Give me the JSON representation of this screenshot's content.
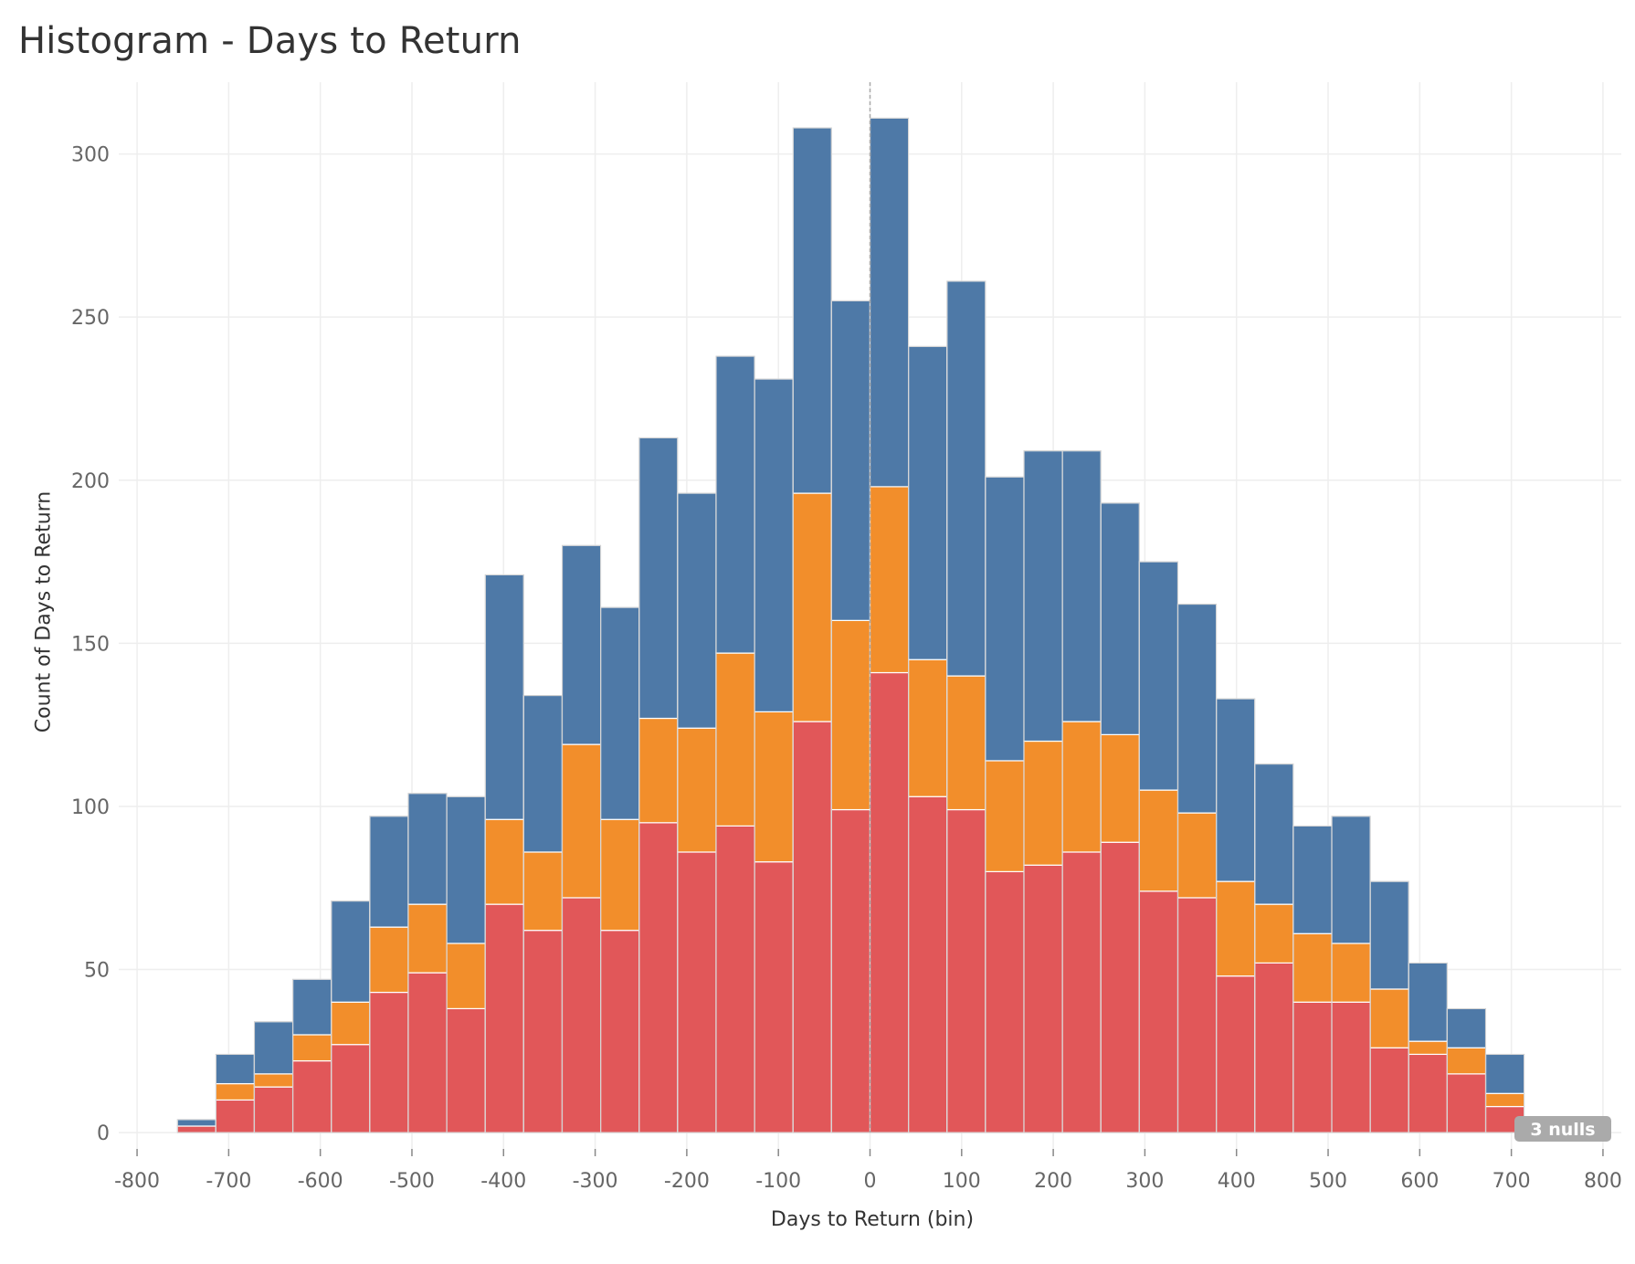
{
  "chart_data": {
    "type": "bar",
    "stacked": true,
    "title": "Histogram - Days to Return",
    "xlabel": "Days to Return (bin)",
    "ylabel": "Count of Days to Return",
    "bin_width": 42,
    "xlim": [
      -820,
      820
    ],
    "ylim": [
      -5,
      322
    ],
    "x_ticks": [
      -800,
      -700,
      -600,
      -500,
      -400,
      -300,
      -200,
      -100,
      0,
      100,
      200,
      300,
      400,
      500,
      600,
      700,
      800
    ],
    "y_ticks": [
      0,
      50,
      100,
      150,
      200,
      250,
      300
    ],
    "grid": true,
    "reference_line_x": 0,
    "bins": [
      -756,
      -714,
      -672,
      -630,
      -588,
      -546,
      -504,
      -462,
      -420,
      -378,
      -336,
      -294,
      -252,
      -210,
      -168,
      -126,
      -84,
      -42,
      0,
      42,
      84,
      126,
      168,
      210,
      252,
      294,
      336,
      378,
      420,
      462,
      504,
      546,
      588,
      630,
      672,
      714
    ],
    "series": [
      {
        "color": "#e15759",
        "values": [
          2,
          10,
          14,
          22,
          27,
          43,
          49,
          38,
          70,
          62,
          72,
          62,
          95,
          86,
          94,
          83,
          126,
          99,
          141,
          103,
          99,
          80,
          82,
          86,
          89,
          74,
          72,
          48,
          52,
          40,
          40,
          26,
          24,
          18,
          8,
          3
        ]
      },
      {
        "color": "#f28e2b",
        "values": [
          0,
          5,
          4,
          8,
          13,
          20,
          21,
          20,
          26,
          24,
          47,
          34,
          32,
          38,
          53,
          46,
          70,
          58,
          57,
          42,
          41,
          34,
          38,
          40,
          33,
          31,
          26,
          29,
          18,
          21,
          18,
          18,
          4,
          8,
          4,
          0
        ]
      },
      {
        "color": "#4e79a7",
        "values": [
          2,
          9,
          16,
          17,
          31,
          34,
          34,
          45,
          75,
          48,
          61,
          65,
          86,
          72,
          91,
          102,
          112,
          98,
          113,
          96,
          121,
          87,
          89,
          83,
          71,
          70,
          64,
          56,
          43,
          33,
          39,
          33,
          24,
          12,
          12,
          0
        ]
      }
    ],
    "annotation": "3 nulls"
  }
}
